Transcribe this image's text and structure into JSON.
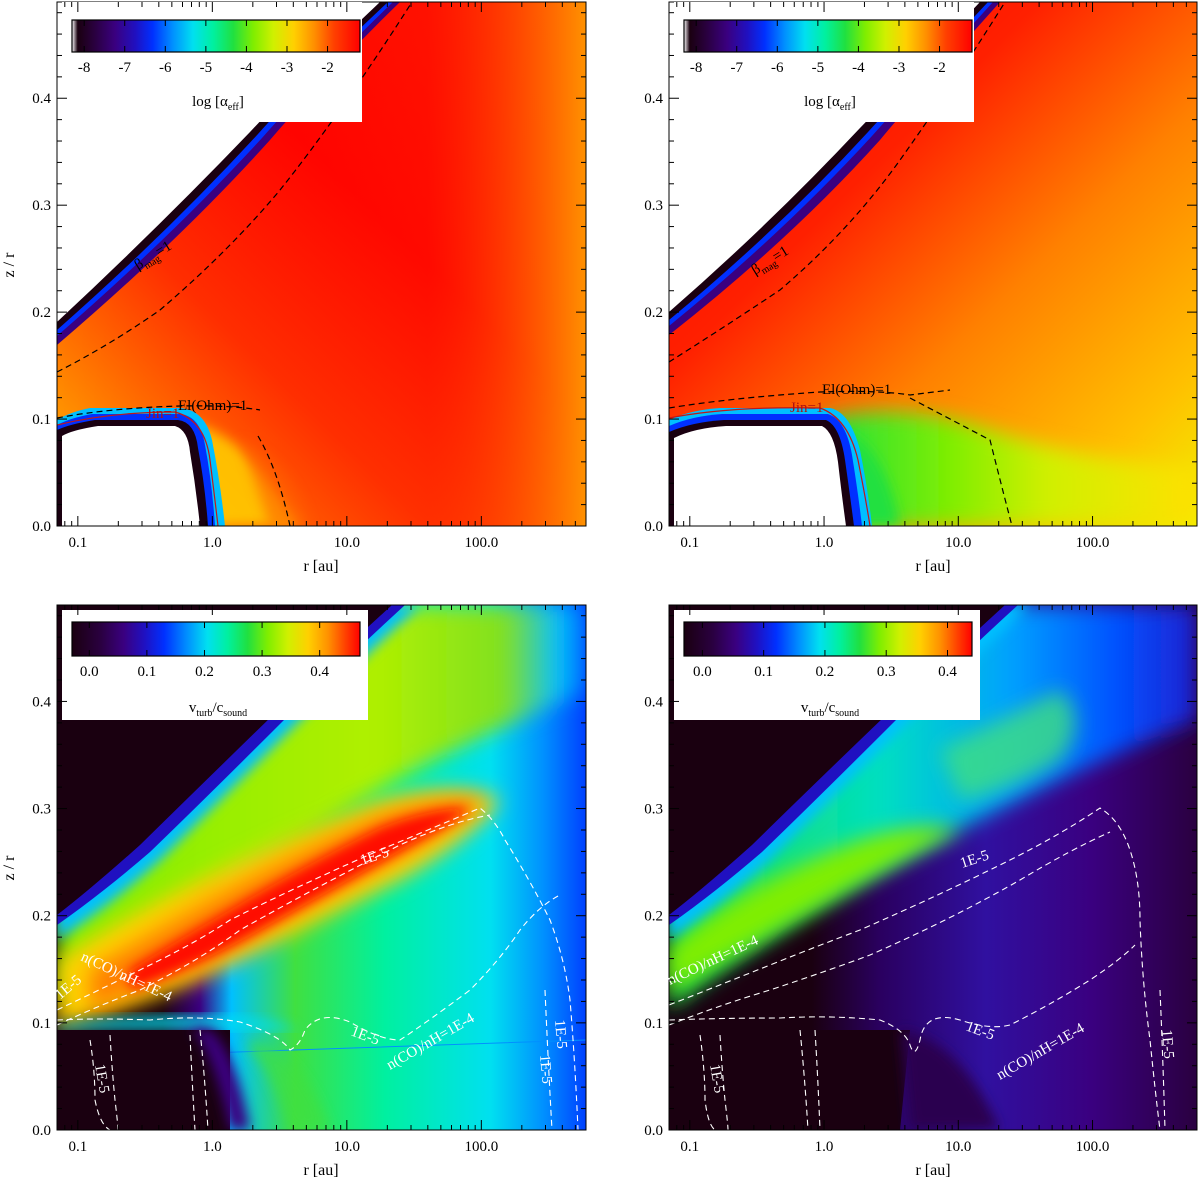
{
  "colors": {
    "rainbow": [
      "#ffffff",
      "#1a0010",
      "#2a0040",
      "#3a0080",
      "#2010c0",
      "#0030ff",
      "#0090ff",
      "#00e0f0",
      "#00f0a0",
      "#20e040",
      "#80ee00",
      "#d0f000",
      "#ffd000",
      "#ff9000",
      "#ff4000",
      "#ff0000"
    ],
    "contour_black": "#000000",
    "contour_red": "#c01818",
    "contour_white": "#ffffff"
  },
  "chart_data": [
    {
      "type": "heatmap",
      "panel": "top-left",
      "xlabel": "r [au]",
      "ylabel": "z / r",
      "xscale": "log",
      "xlim": [
        0.07,
        600
      ],
      "ylim": [
        0.0,
        0.49
      ],
      "xticks": [
        "0.1",
        "1.0",
        "10.0",
        "100.0"
      ],
      "yticks": [
        "0.0",
        "0.1",
        "0.2",
        "0.3",
        "0.4"
      ],
      "colorbar": {
        "label": "log [α",
        "label_sub": "eff",
        "label_end": "]",
        "range": [
          -8.3,
          -1.2
        ],
        "ticks": [
          "-8",
          "-7",
          "-6",
          "-5",
          "-4",
          "-3",
          "-2"
        ],
        "tick_values": [
          -8,
          -7,
          -6,
          -5,
          -4,
          -3,
          -2
        ]
      },
      "contour_labels": [
        {
          "text": "β",
          "sub": "mag",
          "end": "=1",
          "color": "dark"
        },
        {
          "text": "El(Ohm)=1",
          "color": "dark"
        },
        {
          "text": "Jin=1",
          "color": "red"
        }
      ]
    },
    {
      "type": "heatmap",
      "panel": "top-right",
      "xlabel": "r [au]",
      "ylabel": "",
      "xscale": "log",
      "xlim": [
        0.07,
        600
      ],
      "ylim": [
        0.0,
        0.49
      ],
      "xticks": [
        "0.1",
        "1.0",
        "10.0",
        "100.0"
      ],
      "yticks": [
        "0.0",
        "0.1",
        "0.2",
        "0.3",
        "0.4"
      ],
      "colorbar": {
        "label": "log [α",
        "label_sub": "eff",
        "label_end": "]",
        "range": [
          -8.3,
          -1.2
        ],
        "ticks": [
          "-8",
          "-7",
          "-6",
          "-5",
          "-4",
          "-3",
          "-2"
        ],
        "tick_values": [
          -8,
          -7,
          -6,
          -5,
          -4,
          -3,
          -2
        ]
      },
      "contour_labels": [
        {
          "text": "β",
          "sub": "mag",
          "end": "=1",
          "color": "dark"
        },
        {
          "text": "El(Ohm)=1",
          "color": "dark"
        },
        {
          "text": "Jin=1",
          "color": "red"
        }
      ]
    },
    {
      "type": "heatmap",
      "panel": "bottom-left",
      "xlabel": "r [au]",
      "ylabel": "z / r",
      "xscale": "log",
      "xlim": [
        0.07,
        600
      ],
      "ylim": [
        0.0,
        0.49
      ],
      "xticks": [
        "0.1",
        "1.0",
        "10.0",
        "100.0"
      ],
      "yticks": [
        "0.0",
        "0.1",
        "0.2",
        "0.3",
        "0.4"
      ],
      "colorbar": {
        "label": "v",
        "label_sub": "turb",
        "label_mid": "/c",
        "label_sub2": "sound",
        "range": [
          -0.03,
          0.47
        ],
        "ticks": [
          "0.0",
          "0.1",
          "0.2",
          "0.3",
          "0.4"
        ],
        "tick_values": [
          0.0,
          0.1,
          0.2,
          0.3,
          0.4
        ]
      },
      "contour_labels": [
        {
          "text": "1E-5",
          "color": "white"
        },
        {
          "text": "n(CO)/nH=1E-4",
          "color": "white"
        },
        {
          "text": "1E-5",
          "color": "white"
        },
        {
          "text": "1E-5",
          "color": "white"
        },
        {
          "text": "n(CO)/nH=1E-4",
          "color": "white"
        },
        {
          "text": "1E-5",
          "color": "white"
        },
        {
          "text": "1E-5",
          "color": "white"
        },
        {
          "text": "1E-5",
          "color": "white"
        }
      ]
    },
    {
      "type": "heatmap",
      "panel": "bottom-right",
      "xlabel": "r [au]",
      "ylabel": "",
      "xscale": "log",
      "xlim": [
        0.07,
        600
      ],
      "ylim": [
        0.0,
        0.49
      ],
      "xticks": [
        "0.1",
        "1.0",
        "10.0",
        "100.0"
      ],
      "yticks": [
        "0.0",
        "0.1",
        "0.2",
        "0.3",
        "0.4"
      ],
      "colorbar": {
        "label": "v",
        "label_sub": "turb",
        "label_mid": "/c",
        "label_sub2": "sound",
        "range": [
          -0.03,
          0.44
        ],
        "ticks": [
          "0.0",
          "0.1",
          "0.2",
          "0.3",
          "0.4"
        ],
        "tick_values": [
          0.0,
          0.1,
          0.2,
          0.3,
          0.4
        ]
      },
      "contour_labels": [
        {
          "text": "n(CO)/nH=1E-4",
          "color": "white"
        },
        {
          "text": "1E-5",
          "color": "white"
        },
        {
          "text": "n(CO)/nH=1E-4",
          "color": "white"
        },
        {
          "text": "1E-5",
          "color": "white"
        },
        {
          "text": "1E-5",
          "color": "white"
        },
        {
          "text": "1E-5",
          "color": "white"
        }
      ]
    }
  ]
}
